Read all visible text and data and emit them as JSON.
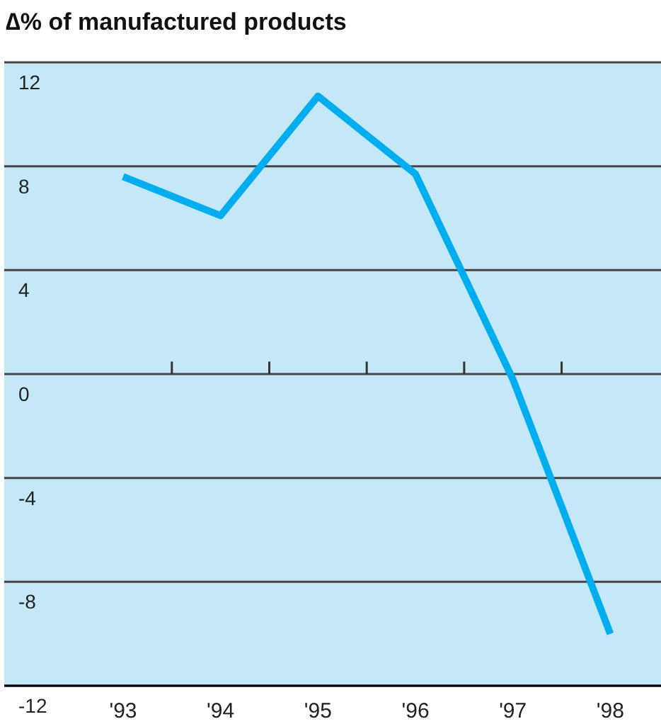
{
  "chart_data": {
    "type": "line",
    "title": "∆% of manufactured products",
    "categories": [
      "'93",
      "'94",
      "'95",
      "'96",
      "'97",
      "'98"
    ],
    "series": [
      {
        "color": "#00aeef",
        "values": [
          7.6,
          6.1,
          10.7,
          7.7,
          -0.2,
          -10.0
        ]
      }
    ],
    "ylim": [
      -12,
      12
    ],
    "yticks": [
      -12,
      -8,
      -4,
      0,
      4,
      8,
      12
    ],
    "grid": "y",
    "marker": "none",
    "line_style": "solid"
  }
}
